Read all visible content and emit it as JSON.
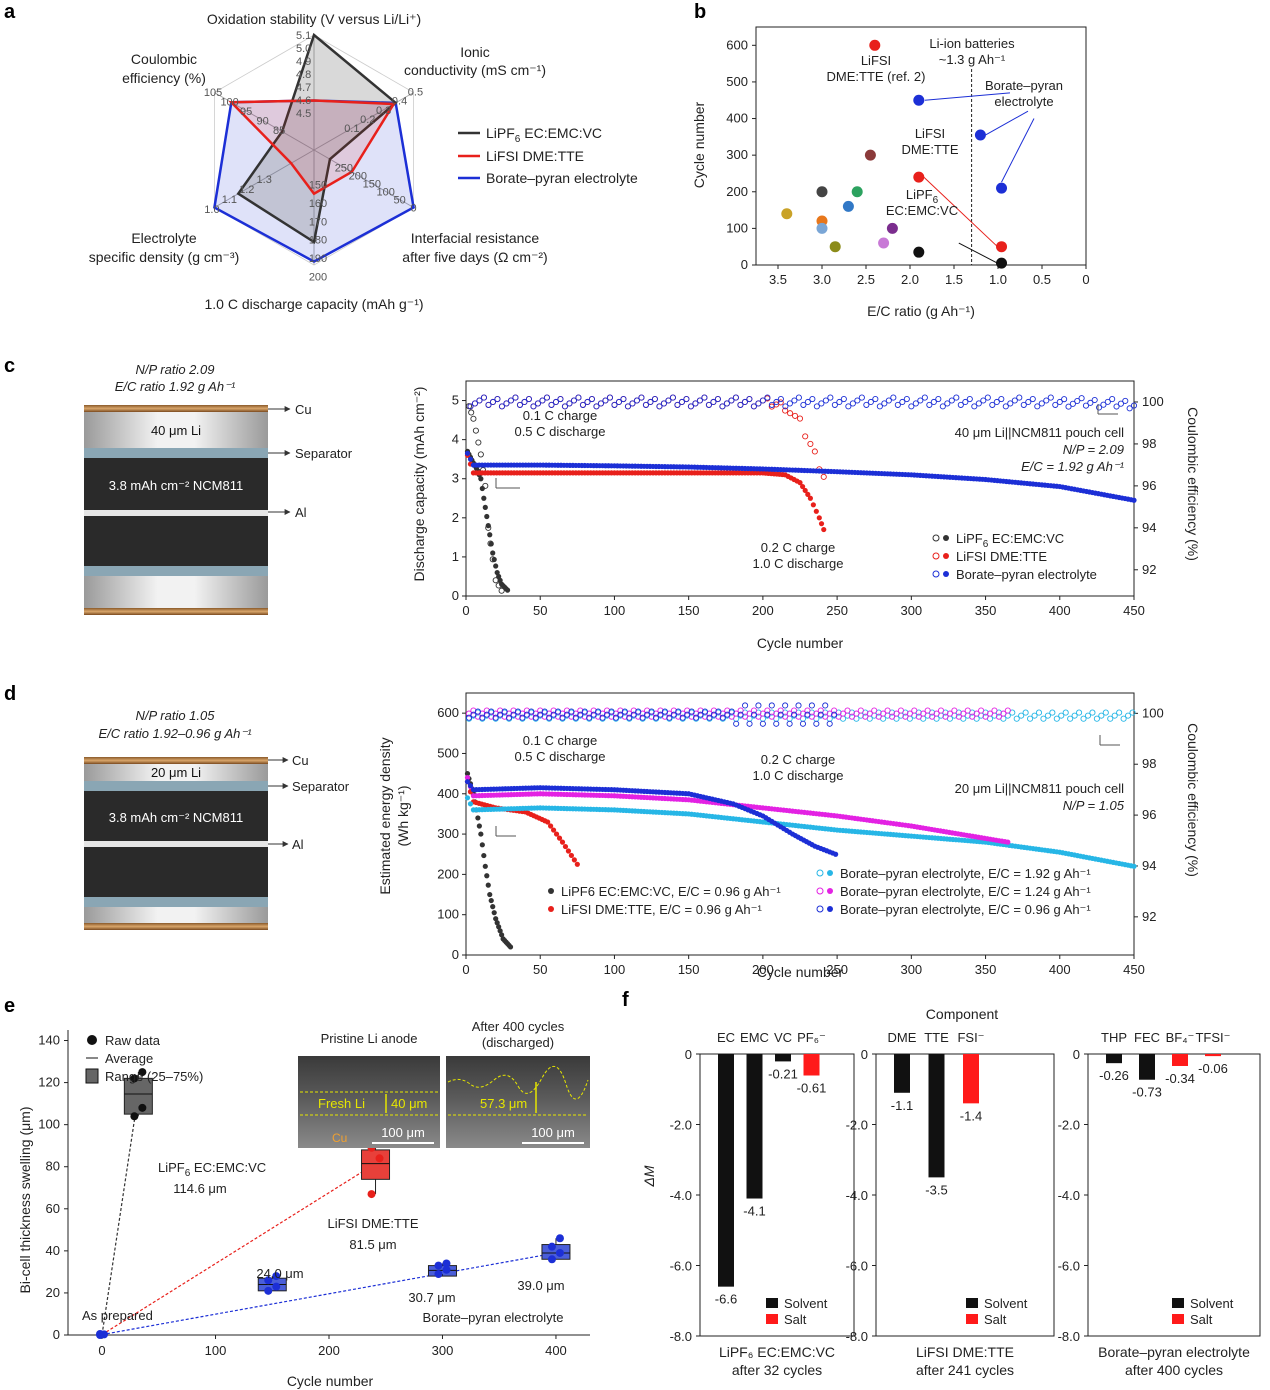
{
  "panel_labels": [
    "a",
    "b",
    "c",
    "d",
    "e",
    "f"
  ],
  "colors": {
    "black": "#333333",
    "red": "#e8201b",
    "blue": "#1c2fd6",
    "cyan": "#27b6e6",
    "magenta": "#e322e3",
    "bluefill": "#4a5ed9"
  },
  "chart_data": [
    {
      "id": "a",
      "type": "radar",
      "axes": [
        {
          "label": "Oxidation stability (V versus Li/Li⁺)",
          "ticks": [
            "4.5",
            "4.6",
            "4.7",
            "4.8",
            "4.9",
            "5.0",
            "5.1"
          ]
        },
        {
          "label_line1": "Ionic",
          "label_line2": "conductivity (mS cm⁻¹)",
          "ticks": [
            "0.1",
            "0.2",
            "0.3",
            "0.4",
            "0.5"
          ]
        },
        {
          "label_line1": "Interfacial resistance",
          "label_line2": "after five days (Ω cm⁻²)",
          "ticks": [
            "250",
            "200",
            "150",
            "100",
            "50",
            "0"
          ]
        },
        {
          "label": "1.0 C discharge capacity (mAh g⁻¹)",
          "ticks": [
            "150",
            "160",
            "170",
            "180",
            "190",
            "200"
          ]
        },
        {
          "label_line1": "Electrolyte",
          "label_line2": "specific density (g cm⁻³)",
          "ticks": [
            "1.3",
            "1.2",
            "1.1",
            "1.0"
          ]
        },
        {
          "label_line1": "Coulombic",
          "label_line2": "efficiency (%)",
          "ticks": [
            "85",
            "90",
            "95",
            "100",
            "105"
          ]
        }
      ],
      "series": [
        {
          "name": "LiPF6 EC:EMC:VC",
          "values": [
            1.0,
            0.82,
            0.16,
            0.8,
            0.76,
            0.32
          ]
        },
        {
          "name": "LiFSI DME:TTE",
          "values": [
            0.43,
            0.8,
            0.38,
            0.38,
            0.23,
            0.83
          ]
        },
        {
          "name": "Borate–pyran electrolyte",
          "values": [
            0.43,
            0.82,
            1.0,
            0.97,
            1.0,
            0.83
          ]
        }
      ],
      "legend": [
        "LiPF",
        "6",
        " EC:EMC:VC",
        "LiFSI DME:TTE",
        "Borate–pyran electrolyte"
      ]
    },
    {
      "id": "b",
      "type": "scatter",
      "xlabel": "E/C ratio (g Ah⁻¹)",
      "ylabel": "Cycle number",
      "xlim": [
        3.75,
        0
      ],
      "ylim": [
        0,
        650
      ],
      "xticks": [
        "3.5",
        "3.0",
        "2.5",
        "2.0",
        "1.5",
        "1.0",
        "0.5",
        "0"
      ],
      "yticks": [
        "0",
        "100",
        "200",
        "300",
        "400",
        "500",
        "600"
      ],
      "points": [
        {
          "x": 2.4,
          "y": 600,
          "c": "#e8201b"
        },
        {
          "x": 1.9,
          "y": 450,
          "c": "#1c2fd6"
        },
        {
          "x": 2.45,
          "y": 300,
          "c": "#8b3a3a"
        },
        {
          "x": 1.9,
          "y": 240,
          "c": "#e8201b"
        },
        {
          "x": 3.0,
          "y": 200,
          "c": "#444444"
        },
        {
          "x": 2.6,
          "y": 200,
          "c": "#2ca25f"
        },
        {
          "x": 2.7,
          "y": 160,
          "c": "#3178c6"
        },
        {
          "x": 3.4,
          "y": 140,
          "c": "#c9a227"
        },
        {
          "x": 3.0,
          "y": 120,
          "c": "#e8771b"
        },
        {
          "x": 3.0,
          "y": 100,
          "c": "#7aa6d6"
        },
        {
          "x": 2.2,
          "y": 100,
          "c": "#7b2d8e"
        },
        {
          "x": 2.85,
          "y": 50,
          "c": "#8c8c1a"
        },
        {
          "x": 2.3,
          "y": 60,
          "c": "#c879d6"
        },
        {
          "x": 1.9,
          "y": 35,
          "c": "#111111"
        },
        {
          "x": 1.2,
          "y": 355,
          "c": "#1c2fd6"
        },
        {
          "x": 0.96,
          "y": 210,
          "c": "#1c2fd6"
        },
        {
          "x": 0.96,
          "y": 50,
          "c": "#e8201b"
        },
        {
          "x": 0.96,
          "y": 5,
          "c": "#111111"
        }
      ],
      "dashed_x": 1.3,
      "annotations": {
        "ref_l1": "LiFSI",
        "ref_l2": "DME:TTE (ref. 2)",
        "li_l1": "Li-ion batteries",
        "li_l2": "~1.3 g Ah⁻¹",
        "bp_l1": "Borate–pyran",
        "bp_l2": "electrolyte",
        "lf_l1": "LiFSI",
        "lf_l2": "DME:TTE",
        "lp_l1": "LiPF",
        "lp_sub": "6",
        "lp_l2": "EC:EMC:VC"
      }
    },
    {
      "id": "c",
      "type": "line",
      "xlabel": "Cycle number",
      "ylabel": "Discharge capacity (mAh cm⁻²)",
      "y2label": "Coulombic efficiency (%)",
      "xlim": [
        0,
        450
      ],
      "ylim": [
        0,
        5.5
      ],
      "y2lim": [
        90.75,
        101
      ],
      "xticks": [
        "0",
        "50",
        "100",
        "150",
        "200",
        "250",
        "300",
        "350",
        "400",
        "450"
      ],
      "yticks": [
        "0",
        "1",
        "2",
        "3",
        "4",
        "5"
      ],
      "y2ticks": [
        "92",
        "94",
        "96",
        "98",
        "100"
      ],
      "series": [
        {
          "name": "LiPF6 EC:EMC:VC",
          "capacity": [
            [
              1,
              3.7
            ],
            [
              5,
              3.4
            ],
            [
              8,
              3.2
            ],
            [
              10,
              3.0
            ],
            [
              12,
              2.5
            ],
            [
              15,
              1.8
            ],
            [
              18,
              1.1
            ],
            [
              21,
              0.6
            ],
            [
              24,
              0.3
            ],
            [
              28,
              0.15
            ]
          ],
          "ce": [
            [
              2,
              99.8
            ],
            [
              5,
              99.2
            ],
            [
              10,
              97.5
            ],
            [
              13,
              96
            ],
            [
              15,
              94
            ],
            [
              18,
              92.5
            ],
            [
              20,
              91.5
            ],
            [
              24,
              91
            ]
          ]
        },
        {
          "name": "LiFSI DME:TTE",
          "capacity": [
            [
              1,
              3.6
            ],
            [
              5,
              3.15
            ],
            [
              50,
              3.15
            ],
            [
              100,
              3.15
            ],
            [
              150,
              3.15
            ],
            [
              200,
              3.15
            ],
            [
              215,
              3.1
            ],
            [
              225,
              2.9
            ],
            [
              232,
              2.5
            ],
            [
              238,
              2.0
            ],
            [
              241,
              1.7
            ]
          ],
          "ce": [
            [
              3,
              100
            ],
            [
              100,
              100
            ],
            [
              200,
              100
            ],
            [
              215,
              99.8
            ],
            [
              225,
              99
            ],
            [
              232,
              98
            ],
            [
              238,
              97
            ],
            [
              241,
              96.5
            ]
          ]
        },
        {
          "name": "Borate–pyran electrolyte",
          "capacity": [
            [
              1,
              3.65
            ],
            [
              5,
              3.35
            ],
            [
              50,
              3.35
            ],
            [
              100,
              3.33
            ],
            [
              150,
              3.3
            ],
            [
              200,
              3.25
            ],
            [
              250,
              3.18
            ],
            [
              300,
              3.1
            ],
            [
              350,
              2.98
            ],
            [
              400,
              2.8
            ],
            [
              450,
              2.45
            ]
          ],
          "ce": [
            [
              3,
              100
            ],
            [
              100,
              100
            ],
            [
              200,
              100
            ],
            [
              300,
              100
            ],
            [
              400,
              100
            ],
            [
              450,
              99.9
            ]
          ]
        }
      ],
      "annotations": {
        "np": "N/P ratio 2.09",
        "ec": "E/C ratio 1.92 g Ah⁻¹",
        "c1": "0.1 C charge",
        "c2": "0.5 C discharge",
        "c3": "0.2 C charge",
        "c4": "1.0 C discharge",
        "cell1": "40 μm Li||NCM811 pouch cell",
        "cell2": "N/P = 2.09",
        "cell3": "E/C = 1.92 g Ah⁻¹",
        "legend": [
          "LiPF",
          "6",
          " EC:EMC:VC",
          "LiFSI DME:TTE",
          "Borate–pyran electrolyte"
        ]
      },
      "cell": {
        "cu": "Cu",
        "li": "40 μm Li",
        "sep": "Separator",
        "ncm": "3.8 mAh cm⁻² NCM811",
        "al": "Al"
      }
    },
    {
      "id": "d",
      "type": "line",
      "xlabel": "Cycle number",
      "ylabel_l1": "Estimated energy density",
      "ylabel_l2": "(Wh kg⁻¹)",
      "y2label": "Coulombic efficiency (%)",
      "xlim": [
        0,
        450
      ],
      "ylim": [
        0,
        650
      ],
      "y2lim": [
        90.5,
        100.8
      ],
      "xticks": [
        "0",
        "50",
        "100",
        "150",
        "200",
        "250",
        "300",
        "350",
        "400",
        "450"
      ],
      "yticks": [
        "0",
        "100",
        "200",
        "300",
        "400",
        "500",
        "600"
      ],
      "y2ticks": [
        "92",
        "94",
        "96",
        "98",
        "100"
      ],
      "series": [
        {
          "name": "LiPF6 EC:EMC:VC, E/C = 0.96 g Ah⁻¹",
          "energy": [
            [
              1,
              450
            ],
            [
              5,
              400
            ],
            [
              8,
              340
            ],
            [
              10,
              300
            ],
            [
              13,
              220
            ],
            [
              16,
              150
            ],
            [
              20,
              90
            ],
            [
              25,
              40
            ],
            [
              30,
              20
            ]
          ]
        },
        {
          "name": "LiFSI DME:TTE, E/C = 0.96 g Ah⁻¹",
          "energy": [
            [
              1,
              430
            ],
            [
              5,
              380
            ],
            [
              20,
              365
            ],
            [
              40,
              355
            ],
            [
              55,
              330
            ],
            [
              65,
              280
            ],
            [
              75,
              225
            ]
          ]
        },
        {
          "name": "Borate–pyran electrolyte, E/C = 1.92 g Ah⁻¹",
          "energy": [
            [
              1,
              390
            ],
            [
              5,
              360
            ],
            [
              50,
              365
            ],
            [
              100,
              360
            ],
            [
              150,
              350
            ],
            [
              200,
              330
            ],
            [
              250,
              310
            ],
            [
              300,
              295
            ],
            [
              350,
              280
            ],
            [
              400,
              255
            ],
            [
              450,
              220
            ]
          ]
        },
        {
          "name": "Borate–pyran electrolyte, E/C = 1.24 g Ah⁻¹",
          "energy": [
            [
              1,
              440
            ],
            [
              5,
              395
            ],
            [
              50,
              400
            ],
            [
              100,
              395
            ],
            [
              150,
              385
            ],
            [
              200,
              365
            ],
            [
              250,
              345
            ],
            [
              300,
              320
            ],
            [
              365,
              280
            ]
          ]
        },
        {
          "name": "Borate–pyran electrolyte, E/C = 0.96 g Ah⁻¹",
          "energy": [
            [
              1,
              430
            ],
            [
              5,
              410
            ],
            [
              50,
              415
            ],
            [
              100,
              410
            ],
            [
              150,
              400
            ],
            [
              180,
              375
            ],
            [
              200,
              345
            ],
            [
              220,
              300
            ],
            [
              235,
              270
            ],
            [
              249,
              250
            ]
          ]
        }
      ],
      "annotations": {
        "np": "N/P ratio 1.05",
        "ec": "E/C ratio 1.92–0.96 g Ah⁻¹",
        "c1": "0.1 C charge",
        "c2": "0.5 C discharge",
        "c3": "0.2 C charge",
        "c4": "1.0 C discharge",
        "cell1": "20 μm Li||NCM811 pouch cell",
        "cell2": "N/P = 1.05"
      },
      "cell": {
        "cu": "Cu",
        "li": "20 μm Li",
        "sep": "Separator",
        "ncm": "3.8 mAh cm⁻² NCM811",
        "al": "Al"
      }
    },
    {
      "id": "e",
      "type": "box",
      "xlabel": "Cycle number",
      "ylabel": "Bi-cell thickness swelling (μm)",
      "xlim": [
        -30,
        430
      ],
      "ylim": [
        0,
        145
      ],
      "xticks": [
        "0",
        "100",
        "200",
        "300",
        "400"
      ],
      "yticks": [
        "0",
        "20",
        "40",
        "60",
        "80",
        "100",
        "120",
        "140"
      ],
      "legend": [
        "Raw data",
        "Average",
        "Range (25–75%)"
      ],
      "boxes": [
        {
          "label": "As prepared",
          "x": 0,
          "q1": 0,
          "q3": 0.5,
          "mean": 0.2,
          "points": [
            0,
            0.3,
            0.5
          ]
        },
        {
          "label_l1": "LiPF",
          "label_sub": "6",
          "label_l2": " EC:EMC:VC",
          "value": "114.6 μm",
          "x": 32,
          "q1": 105,
          "q3": 122,
          "mean": 114.6,
          "points": [
            104,
            108,
            122,
            125
          ],
          "color": "#666666"
        },
        {
          "label_l1": "LiFSI DME:TTE",
          "value": "81.5 μm",
          "x": 241,
          "q1": 74,
          "q3": 88,
          "mean": 81.5,
          "points": [
            67,
            84,
            89
          ],
          "color": "#e8403a"
        },
        {
          "value": "24.0 μm",
          "x": 150,
          "q1": 21,
          "q3": 27,
          "mean": 24.0,
          "points": [
            21,
            23,
            26,
            28
          ],
          "color": "#4a5ed9"
        },
        {
          "value": "30.7 μm",
          "label_l1": "Borate–pyran electrolyte",
          "x": 300,
          "q1": 28,
          "q3": 33,
          "mean": 30.7,
          "points": [
            29,
            31,
            33,
            34
          ],
          "color": "#4a5ed9"
        },
        {
          "value": "39.0 μm",
          "x": 400,
          "q1": 36,
          "q3": 43,
          "mean": 39.0,
          "points": [
            36,
            39,
            42,
            46
          ],
          "color": "#4a5ed9"
        }
      ],
      "sem": {
        "t1": "Pristine Li anode",
        "t2": "After 400 cycles",
        "t3": "(discharged)",
        "fresh": "Fresh Li",
        "thick1": "40 μm",
        "thick2": "57.3 μm",
        "cu": "Cu",
        "scale": "100 μm"
      }
    },
    {
      "id": "f",
      "type": "bar",
      "title": "Component",
      "ylabel": "ΔM",
      "ylim": [
        -8,
        0
      ],
      "yticks": [
        "0",
        "-2.0",
        "-4.0",
        "-6.0",
        "-8.0"
      ],
      "legend": [
        "Solvent",
        "Salt"
      ],
      "groups": [
        {
          "name_l1": "LiPF₆ EC:EMC:VC",
          "name_l2": "after 32 cycles",
          "categories": [
            "EC",
            "EMC",
            "VC",
            "PF₆⁻"
          ],
          "values": [
            -6.6,
            -4.1,
            -0.21,
            -0.61
          ],
          "labels": [
            "-6.6",
            "-4.1",
            "-0.21",
            "-0.61"
          ],
          "types": [
            "solvent",
            "solvent",
            "solvent",
            "salt"
          ]
        },
        {
          "name_l1": "LiFSI DME:TTE",
          "name_l2": "after 241 cycles",
          "categories": [
            "DME",
            "TTE",
            "FSI⁻"
          ],
          "values": [
            -1.1,
            -3.5,
            -1.4
          ],
          "labels": [
            "-1.1",
            "-3.5",
            "-1.4"
          ],
          "types": [
            "solvent",
            "solvent",
            "salt"
          ]
        },
        {
          "name_l1": "Borate–pyran electrolyte",
          "name_l2": "after 400 cycles",
          "categories": [
            "THP",
            "FEC",
            "BF₄⁻",
            "TFSI⁻"
          ],
          "values": [
            -0.26,
            -0.73,
            -0.34,
            -0.06
          ],
          "labels": [
            "-0.26",
            "-0.73",
            "-0.34",
            "-0.06"
          ],
          "types": [
            "solvent",
            "solvent",
            "salt",
            "salt"
          ]
        }
      ]
    }
  ]
}
